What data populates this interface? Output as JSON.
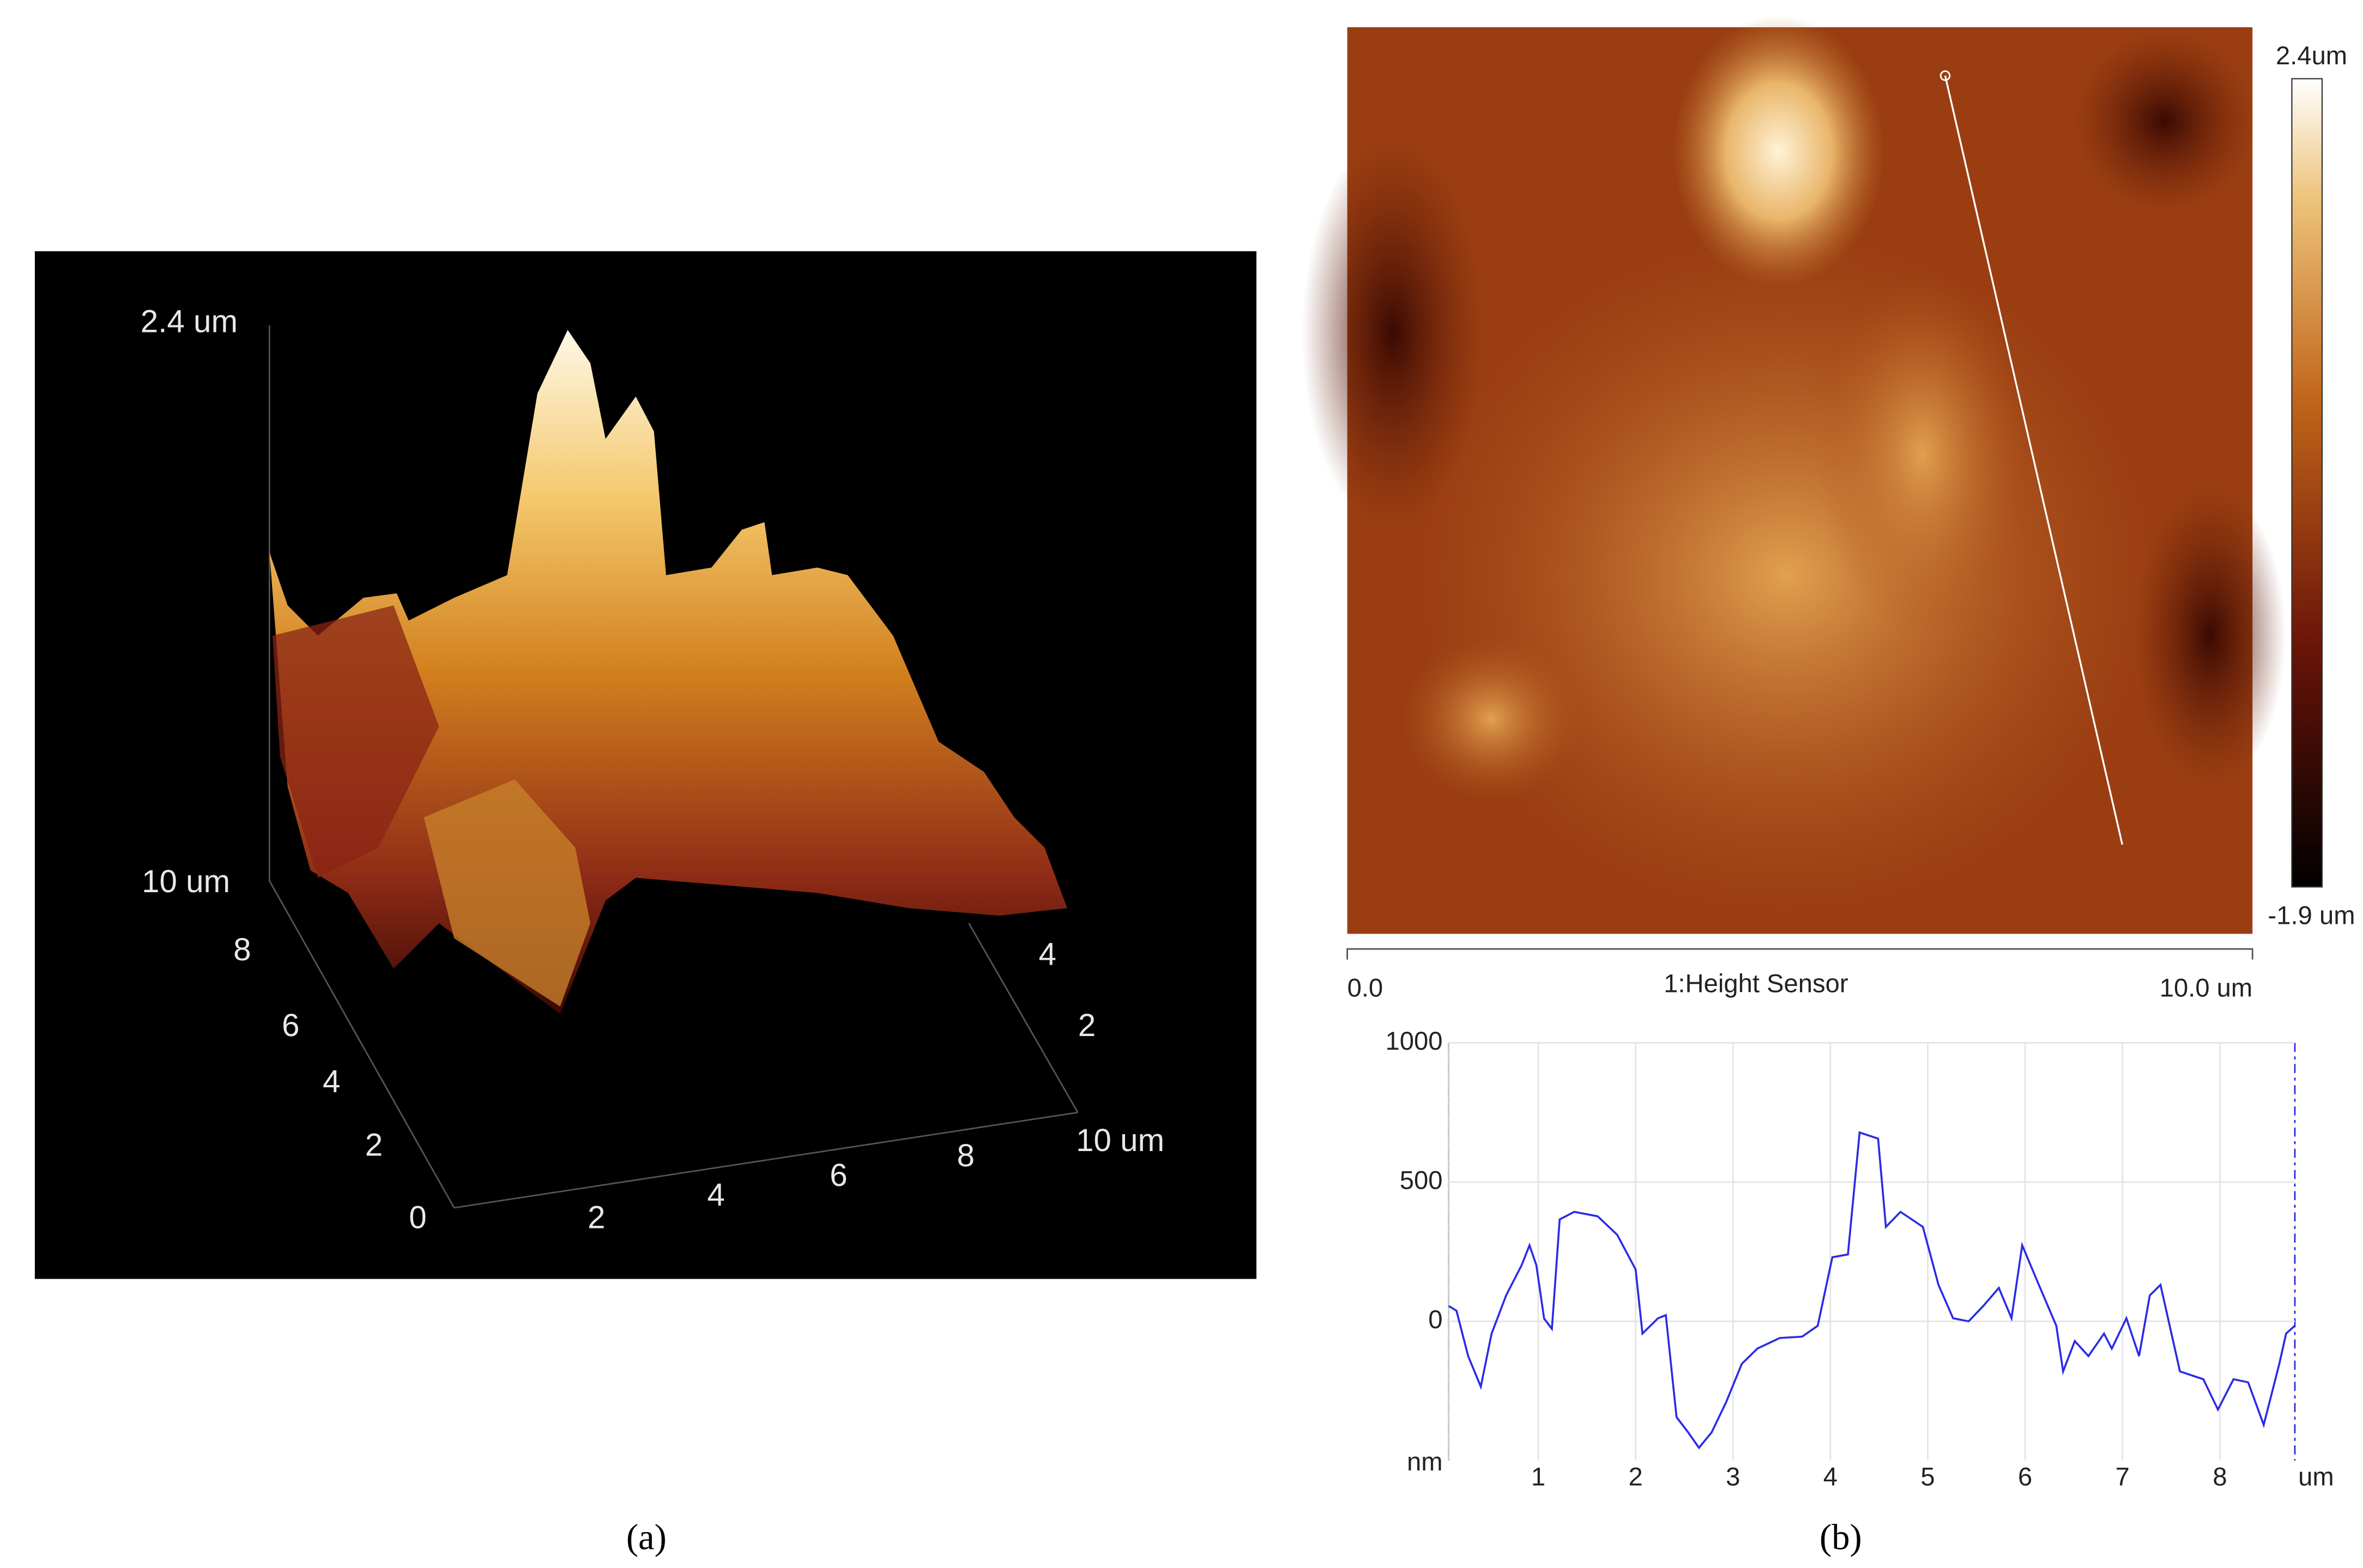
{
  "panel_a": {
    "z_labels": [
      "2.4 um",
      "10 um"
    ],
    "depth_ticks": [
      "8",
      "6",
      "4",
      "2",
      "0"
    ],
    "x_ticks": [
      "2",
      "4",
      "6",
      "8",
      "10 um"
    ],
    "right_ticks": [
      "4",
      "2"
    ],
    "caption": "(a)"
  },
  "panel_b": {
    "colorbar_max": "2.4um",
    "colorbar_min": "-1.9 um",
    "scale_start": "0.0",
    "channel": "1:Height Sensor",
    "scale_end": "10.0 um",
    "caption": "(b)"
  },
  "chart_data": {
    "type": "line",
    "x_label": "um",
    "y_label": "nm",
    "xlim": [
      0.08,
      8.77
    ],
    "ylim": [
      -500,
      1000
    ],
    "xticks": [
      1,
      2,
      3,
      4,
      5,
      6,
      7,
      8
    ],
    "yticks": [
      1000,
      500,
      0
    ],
    "grid": true,
    "color": "#2a2ae8",
    "x": [
      0.08,
      0.16,
      0.28,
      0.41,
      0.52,
      0.67,
      0.83,
      0.91,
      0.98,
      1.06,
      1.14,
      1.22,
      1.37,
      1.61,
      1.81,
      2.0,
      2.07,
      2.23,
      2.31,
      2.42,
      2.54,
      2.65,
      2.78,
      2.93,
      3.09,
      3.25,
      3.48,
      3.71,
      3.87,
      4.02,
      4.18,
      4.3,
      4.49,
      4.57,
      4.72,
      4.95,
      5.11,
      5.26,
      5.42,
      5.57,
      5.73,
      5.86,
      5.97,
      6.12,
      6.32,
      6.39,
      6.51,
      6.65,
      6.81,
      6.89,
      7.04,
      7.17,
      7.28,
      7.39,
      7.59,
      7.83,
      7.98,
      8.14,
      8.29,
      8.45,
      8.61,
      8.68,
      8.77
    ],
    "values": [
      55,
      38,
      -125,
      -235,
      -45,
      93,
      202,
      273,
      202,
      10,
      -27,
      366,
      393,
      377,
      311,
      186,
      -44,
      11,
      22,
      -344,
      -399,
      -454,
      -399,
      -290,
      -153,
      -98,
      -60,
      -55,
      -16,
      230,
      240,
      678,
      656,
      339,
      393,
      339,
      131,
      11,
      0,
      55,
      120,
      11,
      273,
      148,
      -16,
      -180,
      -71,
      -125,
      -44,
      -98,
      11,
      -125,
      93,
      131,
      -180,
      -208,
      -317,
      -208,
      -219,
      -372,
      -153,
      -44,
      -16
    ]
  }
}
